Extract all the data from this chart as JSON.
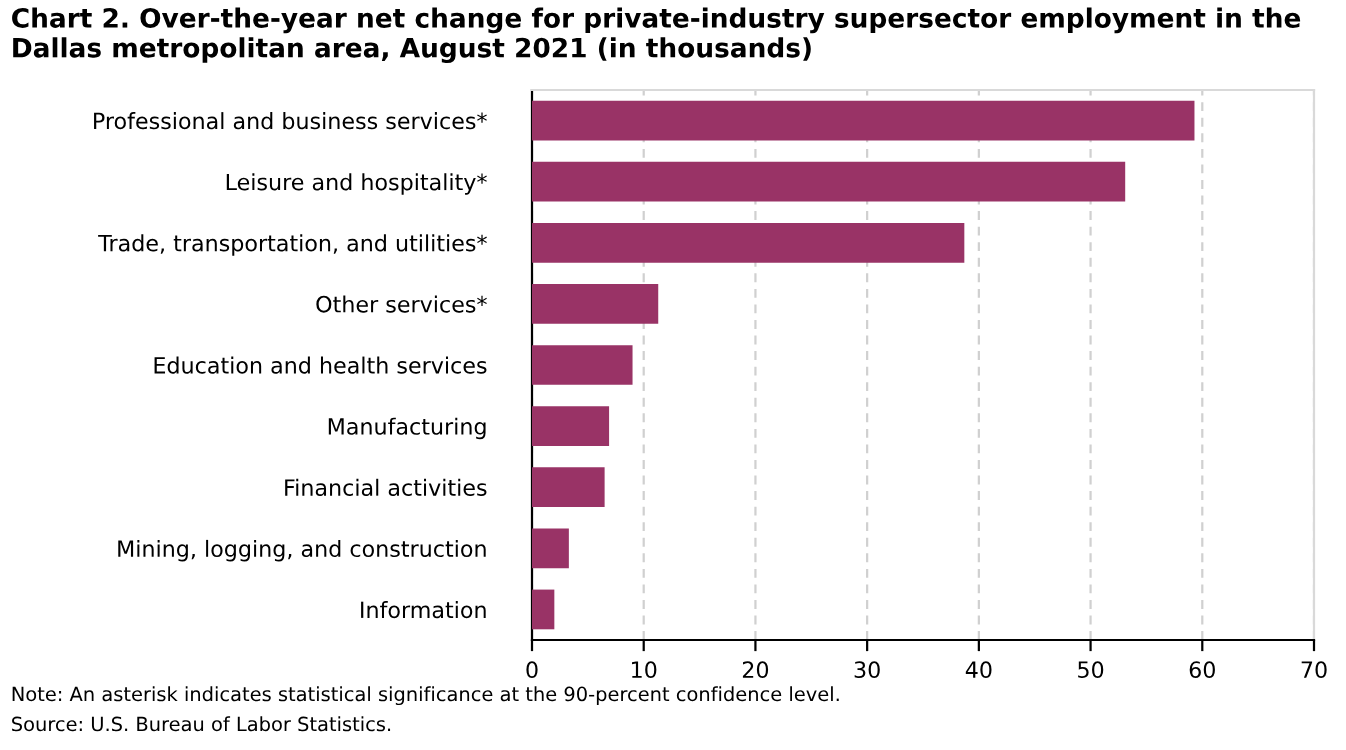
{
  "chart_data": {
    "type": "bar",
    "orientation": "horizontal",
    "title": "Chart 2. Over-the-year net change for private-industry supersector employment in the Dallas metropolitan area, August 2021 (in thousands)",
    "categories": [
      "Professional and business services*",
      "Leisure and hospitality*",
      "Trade, transportation, and utilities*",
      "Other services*",
      "Education and health services",
      "Manufacturing",
      "Financial activities",
      "Mining, logging, and construction",
      "Information"
    ],
    "values": [
      59.3,
      53.1,
      38.7,
      11.3,
      9.0,
      6.9,
      6.5,
      3.3,
      2.0
    ],
    "color": "#993366",
    "xlim": [
      0,
      70
    ],
    "xticks": [
      0,
      10,
      20,
      30,
      40,
      50,
      60,
      70
    ],
    "grid": "x",
    "annotations": [
      "Note: An asterisk indicates statistical significance at the 90-percent confidence level.",
      "Source: U.S. Bureau of Labor Statistics."
    ]
  }
}
